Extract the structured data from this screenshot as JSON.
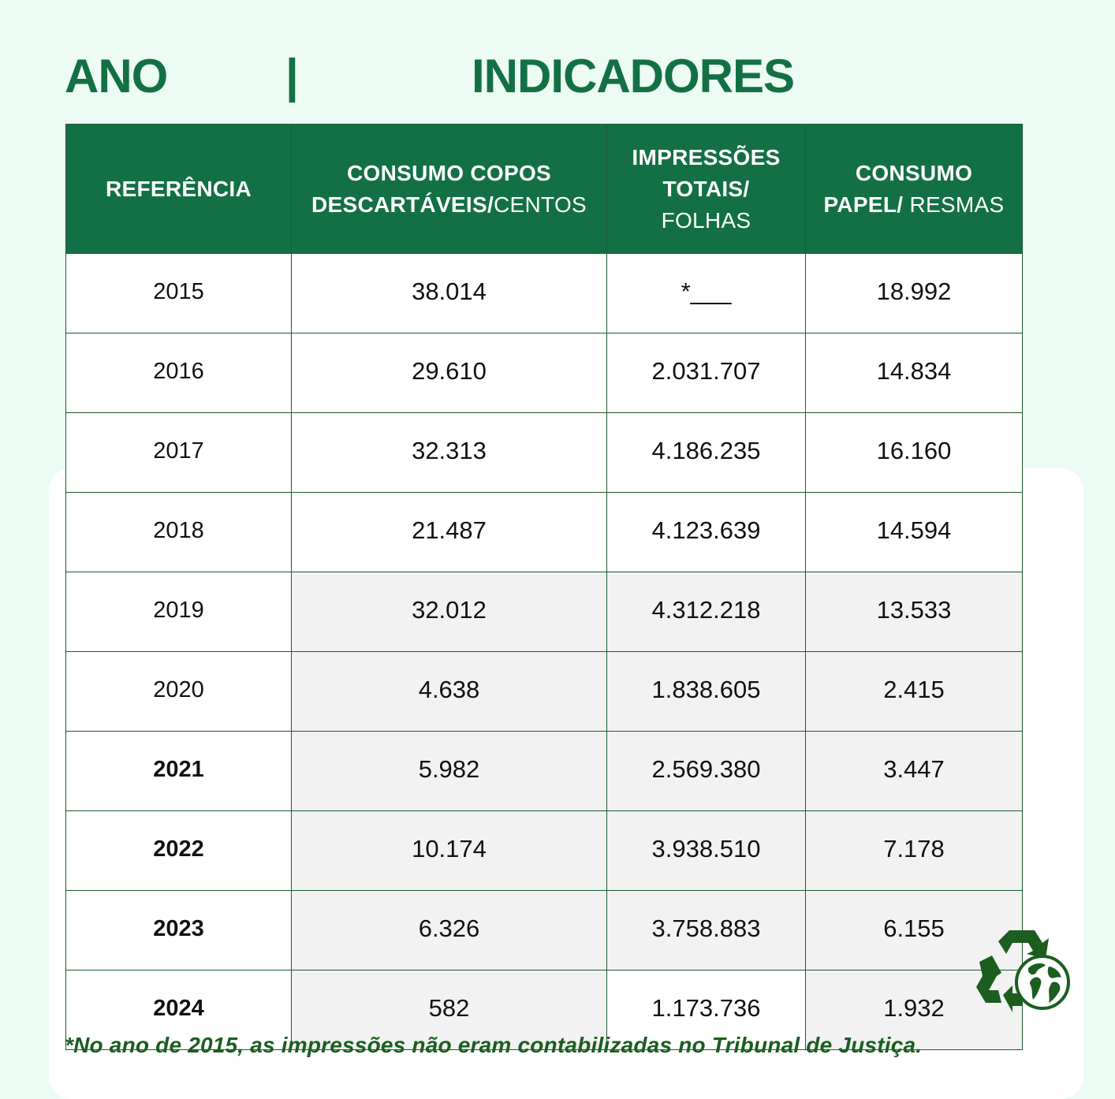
{
  "title": {
    "ano": "ANO",
    "separator": "|",
    "indicadores": "INDICADORES"
  },
  "table": {
    "headers": [
      {
        "bold": "REFERÊNCIA",
        "light": ""
      },
      {
        "bold": "CONSUMO COPOS DESCARTÁVEIS/",
        "light": "CENTOS"
      },
      {
        "bold": "IMPRESSÕES TOTAIS/",
        "light": "FOLHAS"
      },
      {
        "bold": "CONSUMO PAPEL/",
        "light": "RESMAS"
      }
    ],
    "rows": [
      {
        "year": "2015",
        "copos": "38.014",
        "impressoes": "*___",
        "papel": "18.992"
      },
      {
        "year": "2016",
        "copos": "29.610",
        "impressoes": "2.031.707",
        "papel": "14.834"
      },
      {
        "year": "2017",
        "copos": "32.313",
        "impressoes": "4.186.235",
        "papel": "16.160"
      },
      {
        "year": "2018",
        "copos": "21.487",
        "impressoes": "4.123.639",
        "papel": "14.594"
      },
      {
        "year": "2019",
        "copos": "32.012",
        "impressoes": "4.312.218",
        "papel": "13.533"
      },
      {
        "year": "2020",
        "copos": "4.638",
        "impressoes": "1.838.605",
        "papel": "2.415"
      },
      {
        "year": "2021",
        "copos": "5.982",
        "impressoes": "2.569.380",
        "papel": "3.447"
      },
      {
        "year": "2022",
        "copos": "10.174",
        "impressoes": "3.938.510",
        "papel": "7.178"
      },
      {
        "year": "2023",
        "copos": "6.326",
        "impressoes": "3.758.883",
        "papel": "6.155"
      },
      {
        "year": "2024",
        "copos": "582",
        "impressoes": "1.173.736",
        "papel": "1.932"
      }
    ]
  },
  "footnote": "*No ano de 2015, as impressões não eram contabilizadas no Tribunal de Justiça.",
  "icons": {
    "recycle": "recycle-globe-icon"
  },
  "colors": {
    "accent": "#137045",
    "background": "#ecfbf3",
    "footnote": "#1b5e20"
  }
}
